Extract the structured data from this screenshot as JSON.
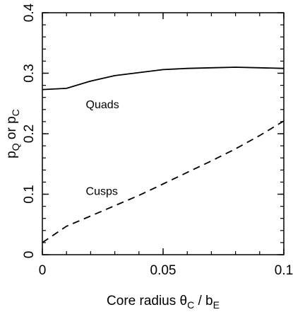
{
  "chart_data": {
    "type": "line",
    "title": "",
    "xlabel": "Core radius θ",
    "xlabel_sub": "C",
    "xlabel_after": " / b",
    "xlabel_sub2": "E",
    "ylabel_p1": "p",
    "ylabel_sub1": "Q",
    "ylabel_mid": " or p",
    "ylabel_sub2": "C",
    "xlim": [
      0,
      0.1
    ],
    "ylim": [
      0,
      0.4
    ],
    "x_ticks": [
      {
        "value": 0,
        "label": "0"
      },
      {
        "value": 0.05,
        "label": "0.05"
      },
      {
        "value": 0.1,
        "label": "0.1"
      }
    ],
    "y_ticks": [
      {
        "value": 0,
        "label": "0"
      },
      {
        "value": 0.1,
        "label": "0.1"
      },
      {
        "value": 0.2,
        "label": "0.2"
      },
      {
        "value": 0.3,
        "label": "0.3"
      },
      {
        "value": 0.4,
        "label": "0.4"
      }
    ],
    "x_minor_step": 0.01,
    "y_minor_step": 0.02,
    "grid": false,
    "series": [
      {
        "label": "Quads",
        "style": "solid",
        "label_pos": {
          "x": 0.018,
          "y": 0.242
        },
        "x": [
          0,
          0.01,
          0.02,
          0.03,
          0.04,
          0.05,
          0.06,
          0.07,
          0.08,
          0.09,
          0.1
        ],
        "y": [
          0.273,
          0.275,
          0.287,
          0.296,
          0.301,
          0.306,
          0.308,
          0.309,
          0.31,
          0.309,
          0.308
        ]
      },
      {
        "label": "Cusps",
        "style": "dashed",
        "label_pos": {
          "x": 0.018,
          "y": 0.099
        },
        "x": [
          0,
          0.01,
          0.02,
          0.03,
          0.04,
          0.05,
          0.06,
          0.07,
          0.08,
          0.09,
          0.1
        ],
        "y": [
          0.02,
          0.047,
          0.064,
          0.081,
          0.098,
          0.117,
          0.136,
          0.155,
          0.175,
          0.197,
          0.221
        ]
      }
    ]
  }
}
